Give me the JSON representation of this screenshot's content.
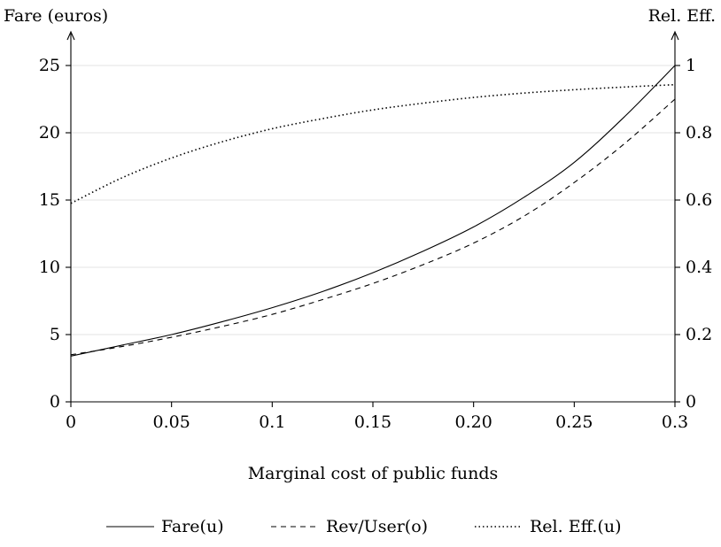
{
  "chart_data": {
    "type": "line",
    "xlabel": "Marginal cost of public funds",
    "ylabel_left": "Fare (euros)",
    "ylabel_right": "Rel. Eff.",
    "xlim": [
      0,
      0.3
    ],
    "ylim_left": [
      0,
      25
    ],
    "ylim_right": [
      0,
      1
    ],
    "x_ticks": [
      {
        "value": 0,
        "label": "0"
      },
      {
        "value": 0.05,
        "label": "0.05"
      },
      {
        "value": 0.1,
        "label": "0.1"
      },
      {
        "value": 0.15,
        "label": "0.15"
      },
      {
        "value": 0.2,
        "label": "0.20"
      },
      {
        "value": 0.25,
        "label": "0.25"
      },
      {
        "value": 0.3,
        "label": "0.3"
      }
    ],
    "y_left_ticks": [
      {
        "value": 0,
        "label": "0"
      },
      {
        "value": 5,
        "label": "5"
      },
      {
        "value": 10,
        "label": "10"
      },
      {
        "value": 15,
        "label": "15"
      },
      {
        "value": 20,
        "label": "20"
      },
      {
        "value": 25,
        "label": "25"
      }
    ],
    "y_right_ticks": [
      {
        "value": 0,
        "label": "0"
      },
      {
        "value": 0.2,
        "label": "0.2"
      },
      {
        "value": 0.4,
        "label": "0.4"
      },
      {
        "value": 0.6,
        "label": "0.6"
      },
      {
        "value": 0.8,
        "label": "0.8"
      },
      {
        "value": 1,
        "label": "1"
      }
    ],
    "grid": "horizontal",
    "legend_position": "bottom",
    "x": [
      0,
      0.025,
      0.05,
      0.075,
      0.1,
      0.125,
      0.15,
      0.175,
      0.2,
      0.225,
      0.25,
      0.275,
      0.3
    ],
    "series": [
      {
        "name": "Fare(u)",
        "axis": "left",
        "style": "solid",
        "values": [
          3.4,
          4.2,
          5.0,
          5.95,
          7.0,
          8.2,
          9.6,
          11.2,
          13.0,
          15.2,
          17.8,
          21.2,
          25.0
        ]
      },
      {
        "name": "Rev/User(o)",
        "axis": "left",
        "style": "dashed",
        "values": [
          3.5,
          4.1,
          4.8,
          5.6,
          6.5,
          7.6,
          8.8,
          10.2,
          11.8,
          13.8,
          16.3,
          19.2,
          22.5
        ]
      },
      {
        "name": "Rel. Eff.(u)",
        "axis": "right",
        "style": "dotted",
        "values": [
          0.59,
          0.665,
          0.725,
          0.773,
          0.812,
          0.842,
          0.868,
          0.888,
          0.905,
          0.918,
          0.928,
          0.936,
          0.943
        ]
      }
    ]
  }
}
